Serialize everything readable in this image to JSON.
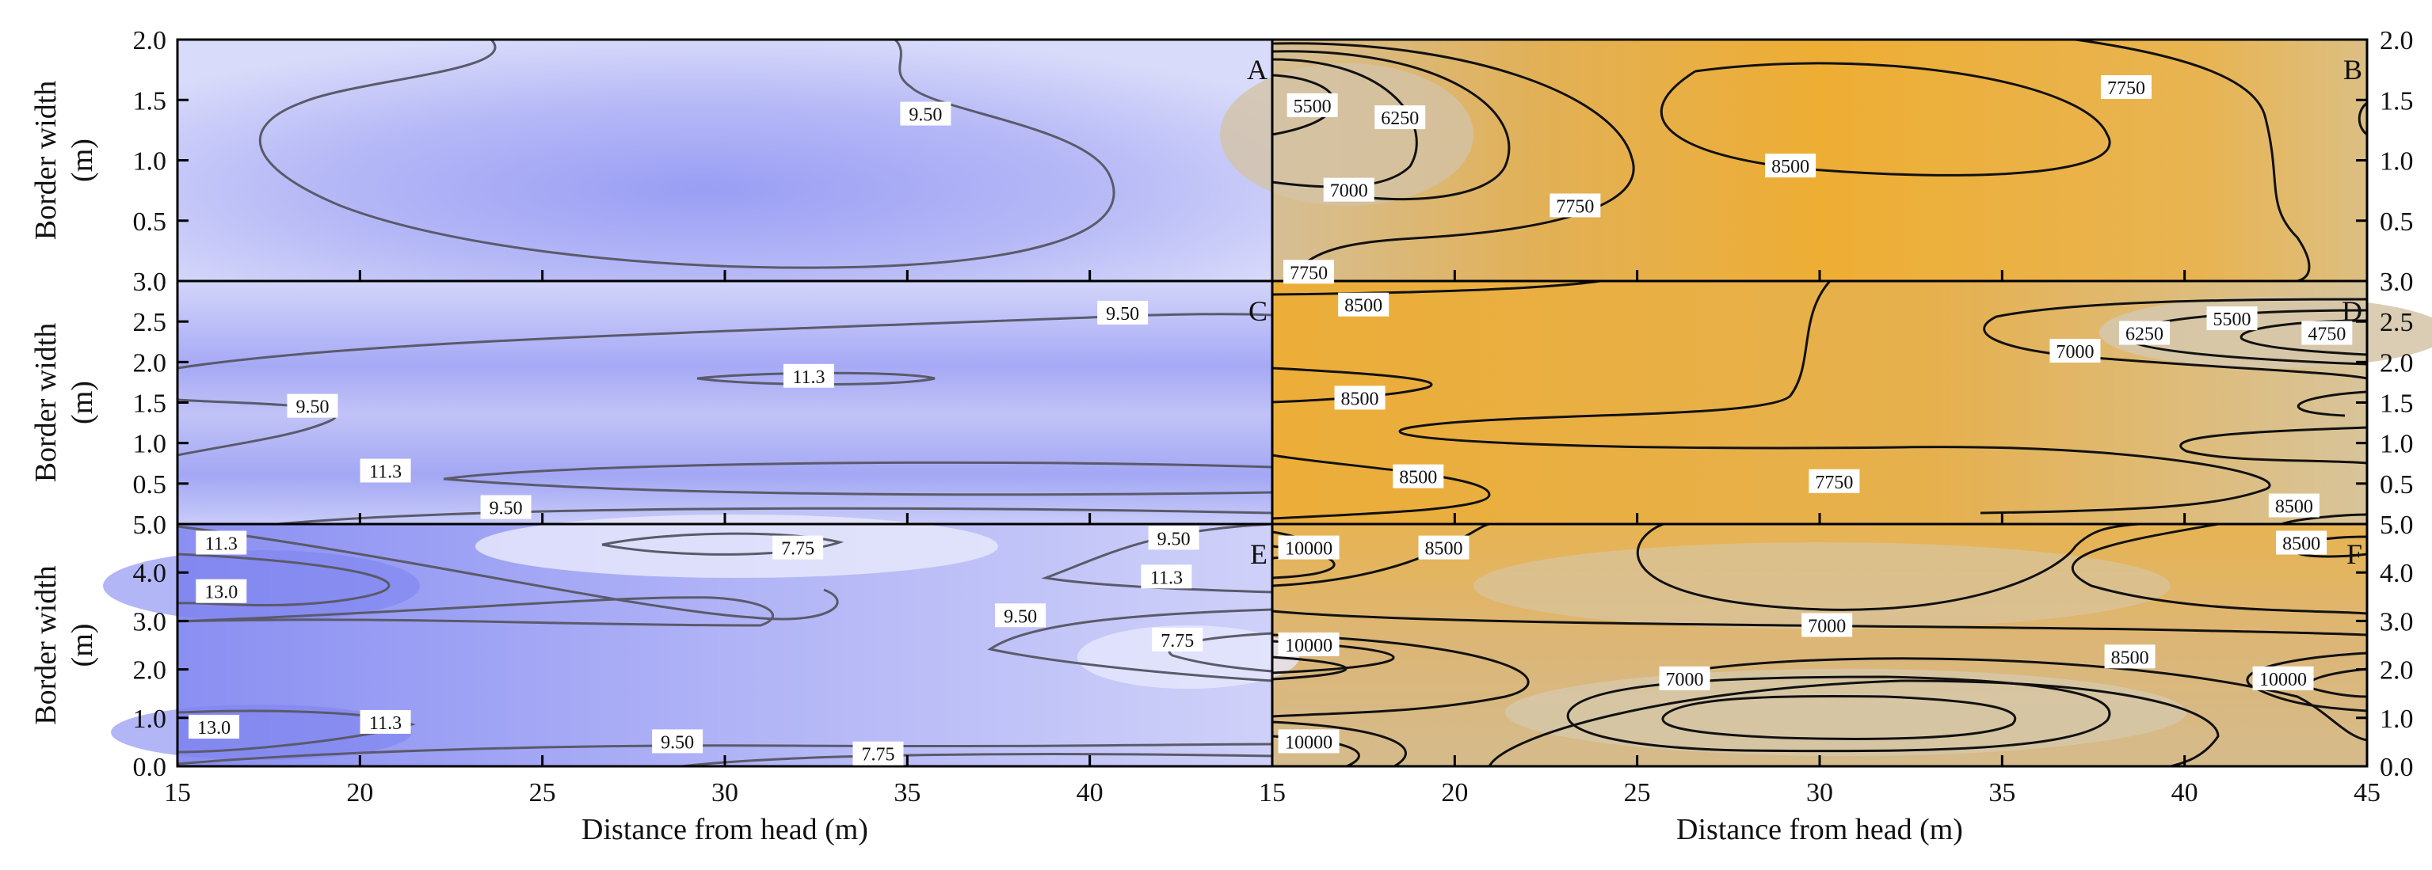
{
  "chart_data": [
    {
      "id": "A",
      "type": "contour",
      "colormap": "blue",
      "panel_label": "A",
      "xlim": [
        15,
        45
      ],
      "ylim": [
        0,
        2
      ],
      "yticks": [
        "0.5",
        "1.0",
        "1.5",
        "2.0"
      ],
      "ylabel": "Border width (m)",
      "contour_labels": [
        {
          "text": "9.50",
          "x": 35.5,
          "y": 1.38
        }
      ]
    },
    {
      "id": "B",
      "type": "contour",
      "colormap": "orange",
      "panel_label": "B",
      "xlim": [
        15,
        45
      ],
      "ylim": [
        0,
        2
      ],
      "yticks": [
        "0.5",
        "1.0",
        "1.5",
        "2.0"
      ],
      "contour_labels": [
        {
          "text": "5500",
          "x": 16.1,
          "y": 1.45
        },
        {
          "text": "6250",
          "x": 18.5,
          "y": 1.35
        },
        {
          "text": "7000",
          "x": 17.1,
          "y": 0.75
        },
        {
          "text": "7750",
          "x": 23.3,
          "y": 0.62
        },
        {
          "text": "8500",
          "x": 29.2,
          "y": 0.95
        },
        {
          "text": "7750",
          "x": 38.4,
          "y": 1.6
        },
        {
          "text": "7750",
          "x": 16.0,
          "y": 0.07
        }
      ]
    },
    {
      "id": "C",
      "type": "contour",
      "colormap": "blue",
      "panel_label": "C",
      "xlim": [
        15,
        45
      ],
      "ylim": [
        0,
        3
      ],
      "yticks": [
        "0.5",
        "1.0",
        "1.5",
        "2.0",
        "2.5",
        "3.0"
      ],
      "ylabel": "Border width (m)",
      "contour_labels": [
        {
          "text": "9.50",
          "x": 40.9,
          "y": 2.6
        },
        {
          "text": "11.3",
          "x": 32.3,
          "y": 1.82
        },
        {
          "text": "9.50",
          "x": 18.7,
          "y": 1.45
        },
        {
          "text": "11.3",
          "x": 20.7,
          "y": 0.65
        },
        {
          "text": "9.50",
          "x": 24.0,
          "y": 0.2
        }
      ]
    },
    {
      "id": "D",
      "type": "contour",
      "colormap": "orange",
      "panel_label": "D",
      "xlim": [
        15,
        45
      ],
      "ylim": [
        0,
        3
      ],
      "yticks": [
        "0.5",
        "1.0",
        "1.5",
        "2.0",
        "2.5",
        "3.0"
      ],
      "contour_labels": [
        {
          "text": "8500",
          "x": 17.5,
          "y": 2.7
        },
        {
          "text": "8500",
          "x": 17.4,
          "y": 1.55
        },
        {
          "text": "8500",
          "x": 19.0,
          "y": 0.58
        },
        {
          "text": "7750",
          "x": 30.4,
          "y": 0.52
        },
        {
          "text": "7000",
          "x": 37.0,
          "y": 2.13
        },
        {
          "text": "6250",
          "x": 38.9,
          "y": 2.35
        },
        {
          "text": "5500",
          "x": 41.3,
          "y": 2.53
        },
        {
          "text": "4750",
          "x": 43.9,
          "y": 2.35
        },
        {
          "text": "8500",
          "x": 43.0,
          "y": 0.22
        }
      ]
    },
    {
      "id": "E",
      "type": "contour",
      "colormap": "blue",
      "panel_label": "E",
      "xlim": [
        15,
        45
      ],
      "ylim": [
        0,
        5
      ],
      "yticks": [
        "0.0",
        "1.0",
        "2.0",
        "3.0",
        "4.0",
        "5.0"
      ],
      "ylabel": "Border width (m)",
      "xticks": [
        "15",
        "20",
        "25",
        "30",
        "35",
        "40"
      ],
      "xlabel": "Distance from head (m)",
      "contour_labels": [
        {
          "text": "11.3",
          "x": 16.2,
          "y": 4.6
        },
        {
          "text": "13.0",
          "x": 16.2,
          "y": 3.6
        },
        {
          "text": "7.75",
          "x": 32.0,
          "y": 4.5
        },
        {
          "text": "9.50",
          "x": 42.3,
          "y": 4.7
        },
        {
          "text": "11.3",
          "x": 42.1,
          "y": 3.9
        },
        {
          "text": "9.50",
          "x": 38.1,
          "y": 3.1
        },
        {
          "text": "7.75",
          "x": 42.4,
          "y": 2.6
        },
        {
          "text": "13.0",
          "x": 16.0,
          "y": 0.8
        },
        {
          "text": "11.3",
          "x": 20.7,
          "y": 0.9
        },
        {
          "text": "9.50",
          "x": 28.7,
          "y": 0.5
        },
        {
          "text": "7.75",
          "x": 34.2,
          "y": 0.25
        }
      ]
    },
    {
      "id": "F",
      "type": "contour",
      "colormap": "orange",
      "panel_label": "F",
      "xlim": [
        15,
        45
      ],
      "ylim": [
        0,
        5
      ],
      "yticks": [
        "0.0",
        "1.0",
        "2.0",
        "3.0",
        "4.0",
        "5.0"
      ],
      "xticks": [
        "15",
        "20",
        "25",
        "30",
        "35",
        "40",
        "45"
      ],
      "xlabel": "Distance from head (m)",
      "contour_labels": [
        {
          "text": "10000",
          "x": 16.0,
          "y": 4.5
        },
        {
          "text": "8500",
          "x": 19.7,
          "y": 4.5
        },
        {
          "text": "8500",
          "x": 43.2,
          "y": 4.6
        },
        {
          "text": "7000",
          "x": 30.2,
          "y": 2.9
        },
        {
          "text": "10000",
          "x": 16.0,
          "y": 2.5
        },
        {
          "text": "8500",
          "x": 38.5,
          "y": 2.25
        },
        {
          "text": "7000",
          "x": 26.3,
          "y": 1.8
        },
        {
          "text": "10000",
          "x": 42.7,
          "y": 1.8
        },
        {
          "text": "10000",
          "x": 16.0,
          "y": 0.5
        }
      ]
    }
  ]
}
